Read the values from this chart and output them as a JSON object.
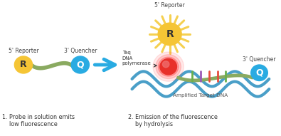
{
  "bg_color": "#ffffff",
  "reporter_color": "#f5c535",
  "quencher_color": "#29abe2",
  "red_ball_color": "#e8302a",
  "red_ball_mid": "#f07070",
  "sun_ray_color": "#f5d050",
  "arrow_color": "#29abe2",
  "dna_blue_color": "#4a9fc8",
  "dna_green_color": "#8ab870",
  "probe_strand_color": "#8aaa60",
  "tick_green": "#6ab04c",
  "tick_purple": "#9b59b6",
  "tick_red": "#e74c3c",
  "label1_caption": "1. Probe in solution emits\n    low fluorescence",
  "label2_caption": "2. Emission of the fluorescence\n    by hydrolysis",
  "reporter_label": "5' Reporter",
  "quencher_label": "3' Quencher",
  "reporter_label2": "5' Reporter",
  "quencher_label2": "3' Quencher",
  "taq_label": "Taq\nDNA\npolymerase",
  "amplified_label": "Amplified Target DNA",
  "R_text": "R",
  "Q_text": "Q"
}
